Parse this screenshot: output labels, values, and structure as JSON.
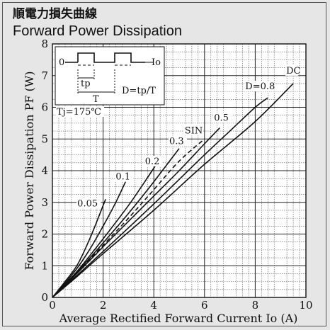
{
  "title_jp": "順電力損失曲線",
  "title_en": "Forward Power Dissipation",
  "chart_data": {
    "type": "line",
    "xlabel": "Average Rectified Forward Current   Io (A)",
    "ylabel": "Forward Power Dissipation   PF (W)",
    "xlim": [
      0,
      10
    ],
    "ylim": [
      0,
      8
    ],
    "x_ticks": [
      "0",
      "2",
      "4",
      "6",
      "8",
      "10"
    ],
    "y_ticks": [
      "0",
      "1",
      "2",
      "3",
      "4",
      "5",
      "6",
      "7",
      "8"
    ],
    "grid": true,
    "inset": {
      "zero_label": "0",
      "io_label": "Io",
      "tp_label": "tp",
      "t_label": "T",
      "d_label": "D=tp/T"
    },
    "condition": "Tj=175℃",
    "series": [
      {
        "name": "0.05",
        "dashed": false,
        "x": [
          0,
          0.5,
          1.0,
          1.5,
          2.0,
          2.1
        ],
        "y": [
          0,
          0.5,
          1.05,
          1.9,
          2.9,
          3.1
        ]
      },
      {
        "name": "0.1",
        "dashed": false,
        "x": [
          0,
          0.5,
          1.0,
          1.5,
          2.0,
          2.5,
          3.0
        ],
        "y": [
          0,
          0.45,
          0.95,
          1.55,
          2.25,
          3.0,
          3.85
        ]
      },
      {
        "name": "0.2",
        "dashed": false,
        "x": [
          0,
          0.5,
          1.0,
          2.0,
          3.0,
          3.6,
          4.1
        ],
        "y": [
          0,
          0.42,
          0.85,
          1.85,
          2.9,
          3.6,
          4.2
        ]
      },
      {
        "name": "0.3",
        "dashed": false,
        "x": [
          0,
          1.0,
          2.0,
          3.0,
          4.0,
          5.0
        ],
        "y": [
          0,
          0.82,
          1.72,
          2.65,
          3.65,
          4.7
        ]
      },
      {
        "name": "SIN",
        "dashed": true,
        "x": [
          0,
          1.0,
          2.0,
          3.0,
          4.0,
          5.0,
          6.0
        ],
        "y": [
          0,
          0.8,
          1.65,
          2.5,
          3.4,
          4.3,
          5.0
        ]
      },
      {
        "name": "0.5",
        "dashed": false,
        "x": [
          0,
          1.0,
          2.0,
          3.0,
          4.0,
          5.0,
          6.0,
          6.6
        ],
        "y": [
          0,
          0.78,
          1.6,
          2.4,
          3.2,
          4.0,
          4.85,
          5.35
        ]
      },
      {
        "name": "D=0.8",
        "dashed": false,
        "x": [
          0,
          1.0,
          2.0,
          4.0,
          6.0,
          7.0,
          8.0,
          8.5
        ],
        "y": [
          0,
          0.72,
          1.45,
          2.95,
          4.5,
          5.25,
          6.0,
          6.3
        ]
      },
      {
        "name": "DC",
        "dashed": false,
        "x": [
          0,
          1.0,
          2.0,
          4.0,
          6.0,
          8.0,
          9.5
        ],
        "y": [
          0,
          0.68,
          1.38,
          2.75,
          4.2,
          5.55,
          6.75
        ]
      }
    ]
  }
}
